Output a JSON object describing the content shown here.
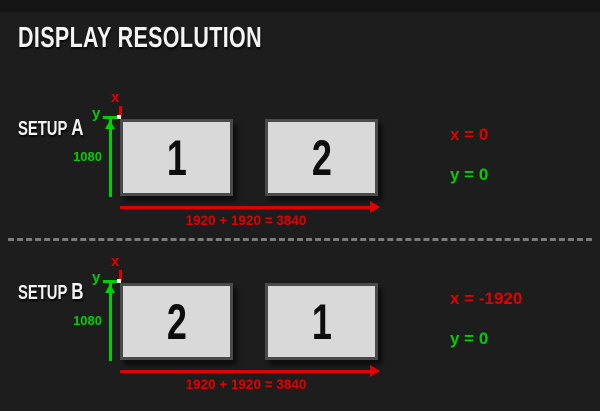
{
  "title": "DISPLAY RESOLUTION",
  "colors": {
    "red": "#e10000",
    "green": "#00cf00",
    "bg": "#1d1d1d",
    "band": "#141414",
    "monitor_fill": "#d9d9d9",
    "monitor_border": "#4a4a4a",
    "divider": "#7b7b7b",
    "white": "#f5f5f5"
  },
  "setups": [
    {
      "label_prefix": "SETUP",
      "label_letter": "A",
      "x_axis_label": "x",
      "y_axis_label": "y",
      "height_label": "1080",
      "width_equation": "1920 + 1920 = 3840",
      "monitors": [
        {
          "label": "1"
        },
        {
          "label": "2"
        }
      ],
      "x_value": "x = 0",
      "y_value": "y = 0"
    },
    {
      "label_prefix": "SETUP",
      "label_letter": "B",
      "x_axis_label": "x",
      "y_axis_label": "y",
      "height_label": "1080",
      "width_equation": "1920 + 1920 = 3840",
      "monitors": [
        {
          "label": "2"
        },
        {
          "label": "1"
        }
      ],
      "x_value": "x = -1920",
      "y_value": "y = 0"
    }
  ]
}
